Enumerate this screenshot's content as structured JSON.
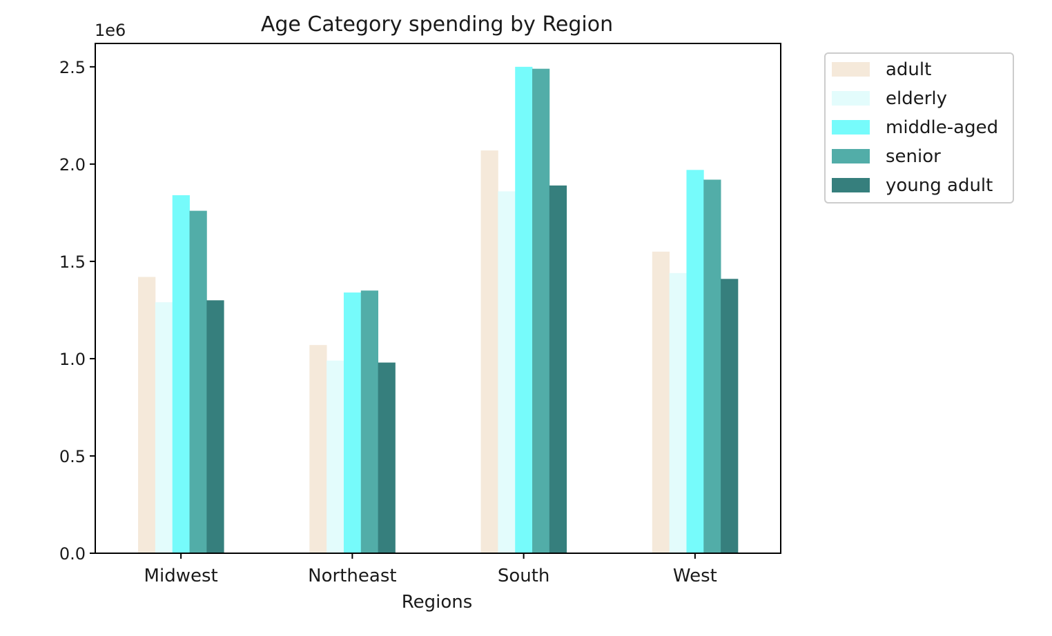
{
  "chart_data": {
    "type": "bar",
    "title": "Age Category spending by Region",
    "xlabel": "Regions",
    "ylabel": "",
    "y_scale_label": "1e6",
    "ylim": [
      0,
      2.62
    ],
    "yticks": [
      "0.0",
      "0.5",
      "1.0",
      "1.5",
      "2.0",
      "2.5"
    ],
    "ytick_values": [
      0,
      0.5,
      1.0,
      1.5,
      2.0,
      2.5
    ],
    "categories": [
      "Midwest",
      "Northeast",
      "South",
      "West"
    ],
    "series": [
      {
        "name": "adult",
        "color": "#f5e9da",
        "values": [
          1.42,
          1.07,
          2.07,
          1.55
        ]
      },
      {
        "name": "elderly",
        "color": "#e3fcfc",
        "values": [
          1.29,
          0.99,
          1.86,
          1.44
        ]
      },
      {
        "name": "middle-aged",
        "color": "#76fbfb",
        "values": [
          1.84,
          1.34,
          2.5,
          1.97
        ]
      },
      {
        "name": "senior",
        "color": "#52ada8",
        "values": [
          1.76,
          1.35,
          2.49,
          1.92
        ]
      },
      {
        "name": "young adult",
        "color": "#367f7d",
        "values": [
          1.3,
          0.98,
          1.89,
          1.41
        ]
      }
    ],
    "legend_position": "outside upper right",
    "grid": false
  }
}
